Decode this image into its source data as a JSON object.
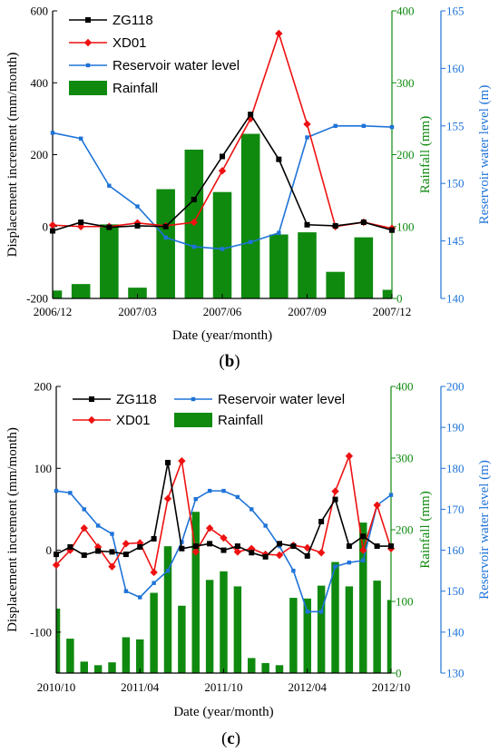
{
  "chart_data": [
    {
      "type": "bar",
      "panel_label_open": "(",
      "panel_label_letter": "b",
      "panel_label_close": ")",
      "xlabel": "Date (year/month)",
      "ylabel_left": "Displacement increment (mm/month)",
      "ylabel_right1": "Rainfall (mm)",
      "ylabel_right2": "Reservoir water level (m)",
      "x_tick_labels": [
        "2006/12",
        "2007/03",
        "2007/06",
        "2007/09",
        "2007/12"
      ],
      "x_tick_positions": [
        0,
        3,
        6,
        9,
        12
      ],
      "xlim": [
        0,
        12
      ],
      "ylim_left": [
        -200,
        600
      ],
      "yticks_left": [
        -200,
        0,
        200,
        400,
        600
      ],
      "ylim_rain": [
        0,
        400
      ],
      "yticks_rain": [
        0,
        100,
        200,
        300,
        400
      ],
      "ylim_level": [
        140,
        165
      ],
      "yticks_level": [
        140,
        145,
        150,
        155,
        160,
        165
      ],
      "legend": {
        "placement": "top-left",
        "entries": [
          "ZG118",
          "XD01",
          "Reservoir water level",
          "Rainfall"
        ]
      },
      "colors": {
        "zg": "#000000",
        "xd": "#ee1111",
        "level": "#1e73d8",
        "rain": "#0f8a0f",
        "left_axis": "#000000",
        "rain_axis": "#0f8a0f",
        "level_axis": "#1e73d8"
      },
      "series": [
        {
          "name": "ZG118",
          "x": [
            0,
            1,
            2,
            3,
            4,
            5,
            6,
            7,
            8,
            9,
            10,
            11,
            12
          ],
          "values": [
            -12,
            12,
            -2,
            2,
            0,
            75,
            195,
            312,
            187,
            5,
            2,
            12,
            -10
          ]
        },
        {
          "name": "XD01",
          "x": [
            0,
            1,
            2,
            3,
            4,
            5,
            6,
            7,
            8,
            9,
            10,
            11,
            12
          ],
          "values": [
            4,
            0,
            0,
            10,
            2,
            12,
            155,
            300,
            537,
            285,
            0,
            12,
            -5
          ]
        },
        {
          "name": "Reservoir water level",
          "x": [
            0,
            1,
            2,
            3,
            4,
            5,
            6,
            7,
            8,
            9,
            10,
            11,
            12
          ],
          "values": [
            154.4,
            153.9,
            149.8,
            148.0,
            145.3,
            144.5,
            144.3,
            144.9,
            145.7,
            154.0,
            155.0,
            155.0,
            154.9
          ]
        },
        {
          "name": "Rainfall",
          "x": [
            0,
            1,
            2,
            3,
            4,
            5,
            6,
            7,
            8,
            9,
            10,
            11,
            12
          ],
          "values": [
            11,
            20,
            103,
            15,
            152,
            207,
            148,
            229,
            89,
            92,
            37,
            85,
            12
          ]
        }
      ]
    },
    {
      "type": "bar",
      "panel_label_open": "(",
      "panel_label_letter": "c",
      "panel_label_close": ")",
      "xlabel": "Date (year/month)",
      "ylabel_left": "Displacement increment (mm/month)",
      "ylabel_right1": "Rainfall (mm)",
      "ylabel_right2": "Reservoir water level (m)",
      "x_tick_labels": [
        "2010/10",
        "2011/04",
        "2011/10",
        "2012/04",
        "2012/10"
      ],
      "x_tick_positions": [
        0,
        6,
        12,
        18,
        24
      ],
      "xlim": [
        0,
        24
      ],
      "ylim_left": [
        -150,
        200
      ],
      "yticks_left": [
        -100,
        0,
        100,
        200
      ],
      "ylim_rain": [
        0,
        400
      ],
      "yticks_rain": [
        0,
        100,
        200,
        300,
        400
      ],
      "ylim_level": [
        130,
        200
      ],
      "yticks_level": [
        130,
        140,
        150,
        160,
        170,
        180,
        190,
        200
      ],
      "legend": {
        "placement": "top-left",
        "entries": [
          "ZG118",
          "XD01",
          "Reservoir water level",
          "Rainfall"
        ]
      },
      "colors": {
        "zg": "#000000",
        "xd": "#ee1111",
        "level": "#1e73d8",
        "rain": "#0f8a0f",
        "left_axis": "#000000",
        "rain_axis": "#0f8a0f",
        "level_axis": "#1e73d8"
      },
      "series": [
        {
          "name": "ZG118",
          "x": [
            0,
            1,
            2,
            3,
            4,
            5,
            6,
            7,
            8,
            9,
            10,
            11,
            12,
            13,
            14,
            15,
            16,
            17,
            18,
            19,
            20,
            21,
            22,
            23,
            24
          ],
          "values": [
            -5,
            4,
            -6,
            -1,
            -2,
            -5,
            4,
            14,
            107,
            2,
            5,
            8,
            0,
            5,
            -3,
            -8,
            8,
            5,
            -7,
            35,
            62,
            5,
            17,
            5,
            5
          ]
        },
        {
          "name": "XD01",
          "x": [
            0,
            1,
            2,
            3,
            4,
            5,
            6,
            7,
            8,
            9,
            10,
            11,
            12,
            13,
            14,
            15,
            16,
            17,
            18,
            19,
            20,
            21,
            22,
            23,
            24
          ],
          "values": [
            -18,
            0,
            27,
            4,
            -20,
            8,
            9,
            -27,
            63,
            109,
            -2,
            27,
            15,
            -2,
            2,
            -5,
            -6,
            6,
            3,
            -3,
            72,
            115,
            0,
            55,
            2
          ]
        },
        {
          "name": "Reservoir water level",
          "x": [
            0,
            1,
            2,
            3,
            4,
            5,
            6,
            7,
            8,
            9,
            10,
            11,
            12,
            13,
            14,
            15,
            16,
            17,
            18,
            19,
            20,
            21,
            22,
            23,
            24
          ],
          "values": [
            174.5,
            174.0,
            170.0,
            166.0,
            164.0,
            150.0,
            148.5,
            152.0,
            155.0,
            162.0,
            172.5,
            174.5,
            174.5,
            173.0,
            170.0,
            166.0,
            161.0,
            155.0,
            145.0,
            145.0,
            156.0,
            157.0,
            157.5,
            171.0,
            173.5
          ]
        },
        {
          "name": "Rainfall",
          "x": [
            0,
            1,
            2,
            3,
            4,
            5,
            6,
            7,
            8,
            9,
            10,
            11,
            12,
            13,
            14,
            15,
            16,
            17,
            18,
            19,
            20,
            21,
            22,
            23,
            24
          ],
          "values": [
            90,
            48,
            16,
            11,
            15,
            50,
            47,
            112,
            177,
            94,
            225,
            130,
            142,
            121,
            21,
            14,
            11,
            105,
            104,
            122,
            155,
            121,
            210,
            129,
            102
          ]
        }
      ]
    }
  ]
}
